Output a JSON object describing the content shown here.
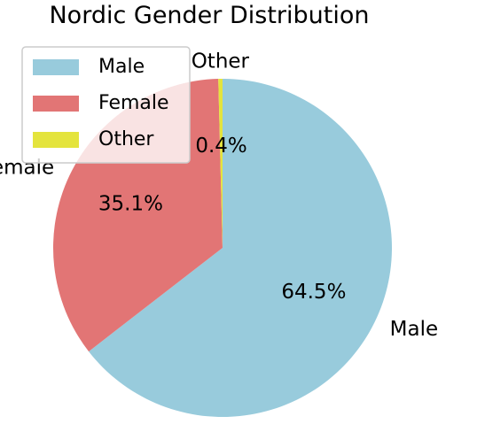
{
  "chart_data": {
    "type": "pie",
    "title": "Nordic Gender Distribution",
    "slices": [
      {
        "label": "Male",
        "value": 64.5,
        "pct_label": "64.5%",
        "color": "#98cbdc"
      },
      {
        "label": "Female",
        "value": 35.1,
        "pct_label": "35.1%",
        "color": "#e27575"
      },
      {
        "label": "Other",
        "value": 0.4,
        "pct_label": "0.4%",
        "color": "#e4e43d"
      }
    ],
    "legend": {
      "placement": "upper-left",
      "entries": [
        "Male",
        "Female",
        "Other"
      ]
    },
    "start_angle_deg": 90,
    "direction": "clockwise"
  }
}
